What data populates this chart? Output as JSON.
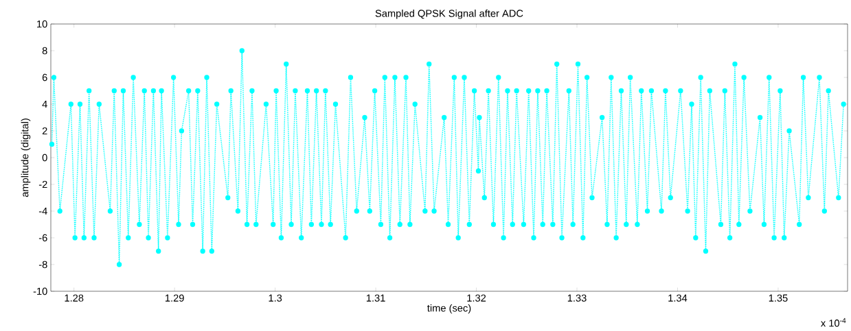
{
  "chart_data": {
    "type": "line",
    "title": "Sampled QPSK Signal after ADC",
    "xlabel": "time (sec)",
    "ylabel": "amplitude (digital)",
    "annotations": [
      "x 10$^{-4}$"
    ],
    "x": [
      1.2778,
      1.278,
      1.2786,
      1.2797,
      1.2801,
      1.2806,
      1.281,
      1.2815,
      1.282,
      1.2825,
      1.2836,
      1.284,
      1.2845,
      1.2849,
      1.2854,
      1.2859,
      1.2865,
      1.287,
      1.2874,
      1.2879,
      1.2884,
      1.2887,
      1.2893,
      1.2899,
      1.2904,
      1.2907,
      1.2914,
      1.2918,
      1.2923,
      1.2928,
      1.2932,
      1.2937,
      1.2942,
      1.2953,
      1.2956,
      1.2963,
      1.2967,
      1.2972,
      1.2977,
      1.2981,
      1.2991,
      1.2998,
      1.3001,
      1.3006,
      1.3011,
      1.3016,
      1.302,
      1.3026,
      1.3032,
      1.3036,
      1.3041,
      1.3046,
      1.305,
      1.3055,
      1.306,
      1.307,
      1.3075,
      1.3081,
      1.3089,
      1.3094,
      1.3099,
      1.3105,
      1.3109,
      1.3114,
      1.3119,
      1.3124,
      1.313,
      1.3134,
      1.3139,
      1.3149,
      1.3153,
      1.3158,
      1.3168,
      1.3172,
      1.3178,
      1.3182,
      1.3188,
      1.3193,
      1.3198,
      1.3202,
      1.3203,
      1.3208,
      1.3212,
      1.3217,
      1.3222,
      1.3227,
      1.3231,
      1.3236,
      1.324,
      1.3247,
      1.3252,
      1.3257,
      1.3261,
      1.3266,
      1.327,
      1.3276,
      1.328,
      1.3285,
      1.3292,
      1.3296,
      1.3301,
      1.3306,
      1.331,
      1.3315,
      1.3325,
      1.333,
      1.3334,
      1.3339,
      1.3344,
      1.3349,
      1.3353,
      1.336,
      1.3364,
      1.337,
      1.3374,
      1.3384,
      1.3388,
      1.3393,
      1.3403,
      1.341,
      1.3414,
      1.3418,
      1.3423,
      1.3428,
      1.3432,
      1.3443,
      1.3447,
      1.3452,
      1.3457,
      1.3461,
      1.3466,
      1.3472,
      1.3482,
      1.3486,
      1.3491,
      1.3496,
      1.3502,
      1.3506,
      1.3511,
      1.3521,
      1.3525,
      1.353,
      1.3541,
      1.3546,
      1.355,
      1.356,
      1.3565
    ],
    "values": [
      1,
      6,
      -4,
      4,
      -6,
      4,
      -6,
      5,
      -6,
      4,
      -4,
      5,
      -8,
      5,
      -6,
      6,
      -5,
      5,
      -6,
      5,
      -7,
      5,
      -6,
      6,
      -5,
      2,
      5,
      -5,
      5,
      -7,
      6,
      -7,
      4,
      -3,
      5,
      -4,
      8,
      -5,
      5,
      -5,
      4,
      -5,
      5,
      -6,
      7,
      -5,
      5,
      -6,
      5,
      -5,
      5,
      -5,
      5,
      -5,
      4,
      -6,
      6,
      -4,
      3,
      -4,
      5,
      -5,
      6,
      -6,
      6,
      -5,
      6,
      -5,
      4,
      -4,
      7,
      -4,
      3,
      -5,
      6,
      -6,
      6,
      -5,
      5,
      -1,
      3,
      -3,
      5,
      -5,
      6,
      -6,
      5,
      -5,
      5,
      -5,
      5,
      -6,
      5,
      -5,
      5,
      -5,
      7,
      -6,
      5,
      -5,
      7,
      -6,
      6,
      -3,
      3,
      -5,
      6,
      -6,
      5,
      -5,
      6,
      -5,
      5,
      -4,
      5,
      -4,
      5,
      -3,
      5,
      -4,
      4,
      -6,
      6,
      -7,
      5,
      -5,
      5,
      -6,
      7,
      -5,
      6,
      -4,
      3,
      -5,
      6,
      -6,
      5,
      -6,
      2,
      -5,
      6,
      -3,
      6,
      -4,
      5,
      -3,
      4
    ],
    "color": "#00ffff",
    "marker": "circle",
    "line_style": "dotted",
    "xlim": [
      1.2777,
      1.3569
    ],
    "ylim": [
      -10,
      10
    ],
    "xticks": [
      1.28,
      1.29,
      1.3,
      1.31,
      1.32,
      1.33,
      1.34,
      1.35
    ],
    "yticks": [
      -10,
      -8,
      -6,
      -4,
      -2,
      0,
      2,
      4,
      6,
      8,
      10
    ]
  }
}
